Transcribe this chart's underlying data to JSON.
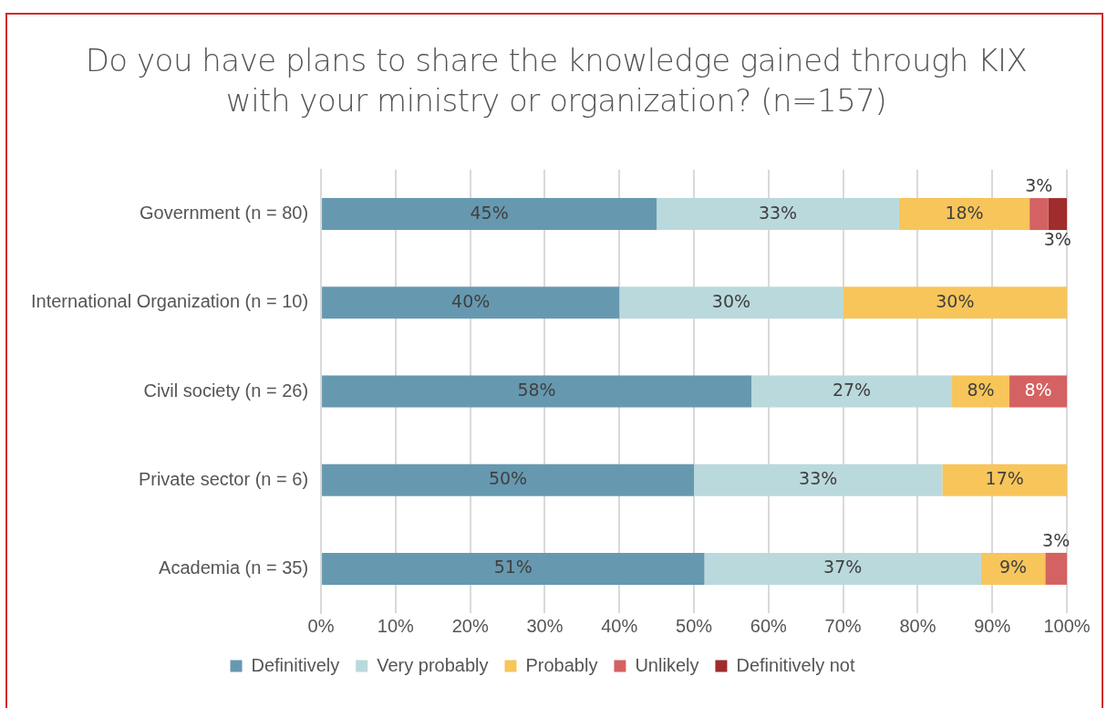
{
  "chart_data": {
    "type": "bar",
    "orientation": "horizontal",
    "stacked": true,
    "title": "Do you have plans to share the knowledge gained through KIX with your ministry or organization? (n=157)",
    "categories": [
      "Government (n = 80)",
      "International Organization (n = 10)",
      "Civil society (n = 26)",
      "Private sector (n = 6)",
      "Academia (n = 35)"
    ],
    "series": [
      {
        "name": "Definitively",
        "color": "#6699b0",
        "values": [
          45,
          40,
          57.7,
          50,
          51.4
        ],
        "value_labels": [
          "45%",
          "40%",
          "58%",
          "50%",
          "51%"
        ]
      },
      {
        "name": "Very probably",
        "color": "#bad9dc",
        "values": [
          32.5,
          30,
          26.9,
          33.3,
          37.1
        ],
        "value_labels": [
          "33%",
          "30%",
          "27%",
          "33%",
          "37%"
        ]
      },
      {
        "name": "Probably",
        "color": "#f7c55a",
        "values": [
          17.5,
          30,
          7.7,
          16.7,
          8.6
        ],
        "value_labels": [
          "18%",
          "30%",
          "8%",
          "17%",
          "9%"
        ]
      },
      {
        "name": "Unlikely",
        "color": "#d46262",
        "values": [
          2.5,
          null,
          7.7,
          null,
          2.9
        ],
        "value_labels": [
          "3%",
          null,
          "8%",
          null,
          "3%"
        ]
      },
      {
        "name": "Definitively not",
        "color": "#a02c2c",
        "values": [
          2.5,
          null,
          null,
          null,
          null
        ],
        "value_labels": [
          "3%",
          null,
          null,
          null,
          null
        ]
      }
    ],
    "xlim": [
      0,
      100
    ],
    "xticks": [
      {
        "value": 0,
        "label": "0%"
      },
      {
        "value": 10,
        "label": "10%"
      },
      {
        "value": 20,
        "label": "20%"
      },
      {
        "value": 30,
        "label": "30%"
      },
      {
        "value": 40,
        "label": "40%"
      },
      {
        "value": 50,
        "label": "50%"
      },
      {
        "value": 60,
        "label": "60%"
      },
      {
        "value": 70,
        "label": "70%"
      },
      {
        "value": 80,
        "label": "80%"
      },
      {
        "value": 90,
        "label": "90%"
      },
      {
        "value": 100,
        "label": "100%"
      }
    ],
    "grid": "x",
    "legend": "bottom"
  }
}
